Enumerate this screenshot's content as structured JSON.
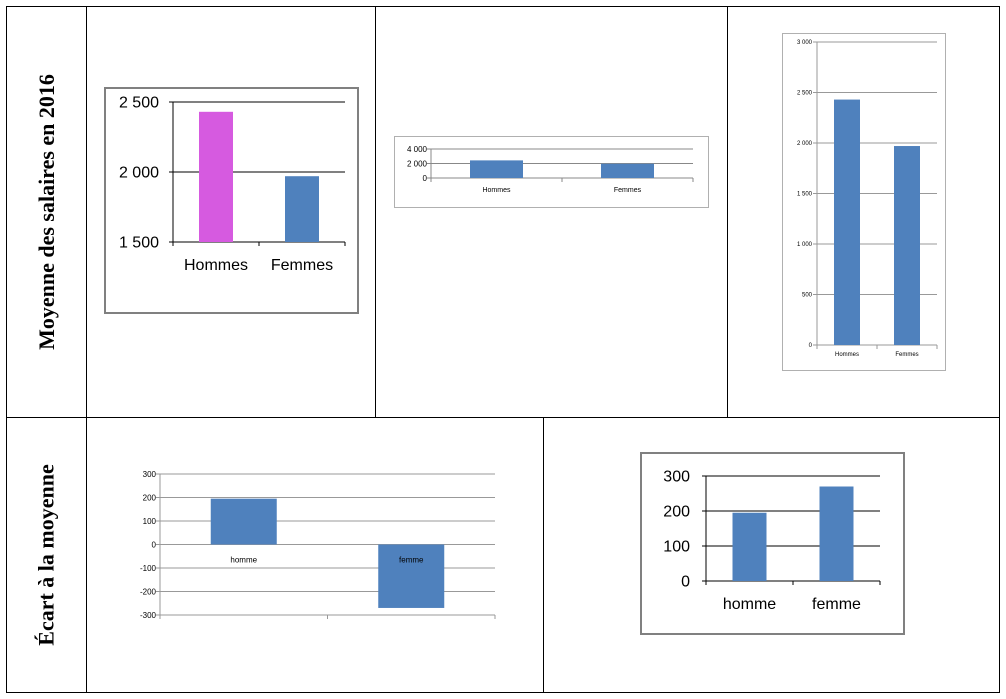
{
  "table": {
    "row1_label": "Moyenne des salaires en 2016",
    "row2_label": "Écart à la moyenne"
  },
  "chart_data": [
    {
      "type": "bar",
      "categories": [
        "Hommes",
        "Femmes"
      ],
      "values": [
        2430,
        1970
      ],
      "bar_colors": [
        "#d65ae0",
        "#4f81bd"
      ],
      "ylim": [
        1500,
        2500
      ],
      "yticks": [
        1500,
        2000,
        2500
      ],
      "ytick_labels": [
        "1 500",
        "2 000",
        "2 500"
      ],
      "grid": true,
      "title": "",
      "xlabel": "",
      "ylabel": ""
    },
    {
      "type": "bar",
      "categories": [
        "Hommes",
        "Femmes"
      ],
      "values": [
        2430,
        1970
      ],
      "bar_colors": [
        "#4f81bd",
        "#4f81bd"
      ],
      "ylim": [
        0,
        4000
      ],
      "yticks": [
        0,
        2000,
        4000
      ],
      "ytick_labels": [
        "0",
        "2 000",
        "4 000"
      ],
      "grid": true,
      "title": "",
      "xlabel": "",
      "ylabel": ""
    },
    {
      "type": "bar",
      "categories": [
        "Hommes",
        "Femmes"
      ],
      "values": [
        2430,
        1970
      ],
      "bar_colors": [
        "#4f81bd",
        "#4f81bd"
      ],
      "ylim": [
        0,
        3000
      ],
      "yticks": [
        0,
        500,
        1000,
        1500,
        2000,
        2500,
        3000
      ],
      "ytick_labels": [
        "0",
        "500",
        "1 000",
        "1 500",
        "2 000",
        "2 500",
        "3 000"
      ],
      "grid": true,
      "title": "",
      "xlabel": "",
      "ylabel": ""
    },
    {
      "type": "bar",
      "categories": [
        "homme",
        "femme"
      ],
      "values": [
        195,
        -270
      ],
      "bar_colors": [
        "#4f81bd",
        "#4f81bd"
      ],
      "ylim": [
        -300,
        300
      ],
      "yticks": [
        -300,
        -200,
        -100,
        0,
        100,
        200,
        300
      ],
      "ytick_labels": [
        "-300",
        "-200",
        "-100",
        "0",
        "100",
        "200",
        "300"
      ],
      "grid": true,
      "title": "",
      "xlabel": "",
      "ylabel": ""
    },
    {
      "type": "bar",
      "categories": [
        "homme",
        "femme"
      ],
      "values": [
        195,
        270
      ],
      "bar_colors": [
        "#4f81bd",
        "#4f81bd"
      ],
      "ylim": [
        0,
        300
      ],
      "yticks": [
        0,
        100,
        200,
        300
      ],
      "ytick_labels": [
        "0",
        "100",
        "200",
        "300"
      ],
      "grid": true,
      "title": "",
      "xlabel": "",
      "ylabel": ""
    }
  ]
}
